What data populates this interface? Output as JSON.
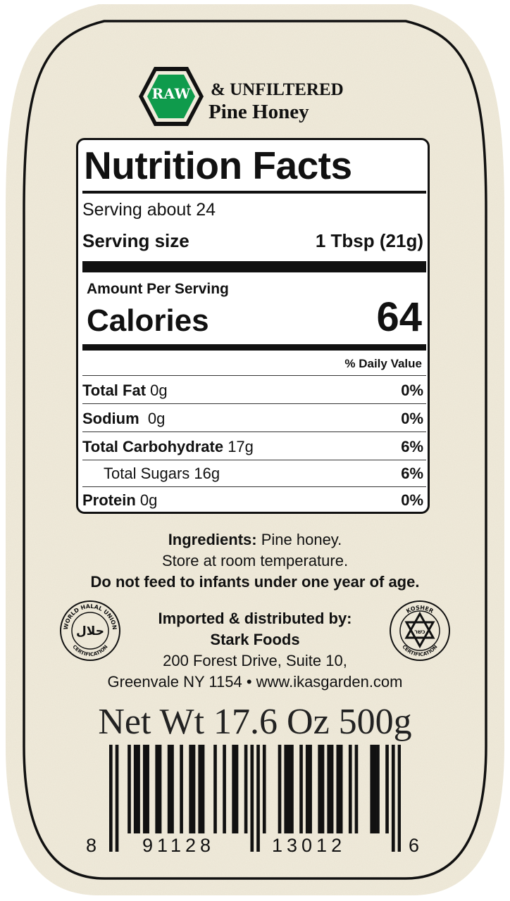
{
  "brand": {
    "badge": "RAW",
    "line1": "& UNFILTERED",
    "line2": "Pine Honey",
    "badge_color": "#0f9b4c"
  },
  "nutrition": {
    "title": "Nutrition Facts",
    "servings": "Serving about 24",
    "serving_size_label": "Serving size",
    "serving_size_value": "1 Tbsp (21g)",
    "amount_per_serving": "Amount Per Serving",
    "calories_label": "Calories",
    "calories_value": "64",
    "dv_header": "% Daily Value",
    "rows": [
      {
        "name": "Total Fat",
        "amount": "0g",
        "dv": "0%",
        "indent": false
      },
      {
        "name": "Sodium",
        "amount": "0g",
        "dv": "0%",
        "indent": false
      },
      {
        "name": "Total Carbohydrate",
        "amount": "17g",
        "dv": "6%",
        "indent": false
      },
      {
        "name": "",
        "amount": "Total Sugars 16g",
        "dv": "6%",
        "indent": true
      },
      {
        "name": "Protein",
        "amount": "0g",
        "dv": "0%",
        "indent": false
      }
    ]
  },
  "ingredients": {
    "label": "Ingredients:",
    "text": "Pine honey.",
    "storage": "Store at room temperature.",
    "warning": "Do not feed to infants under one year of age."
  },
  "distributor": {
    "heading": "Imported & distributed by:",
    "name": "Stark Foods",
    "address1": "200 Forest Drive, Suite 10,",
    "address2": "Greenvale NY 1154 • www.ikasgarden.com"
  },
  "seals": {
    "halal_top": "WORLD HALAL UNION",
    "halal_bottom": "CERTIFICATION",
    "halal_center": "حلال",
    "kosher_top": "KOSHER",
    "kosher_bottom": "CERTIFICATION",
    "kosher_center": "כשר"
  },
  "net_weight": "Net Wt 17.6 Oz 500g",
  "barcode": {
    "first": "8",
    "left_group": "91128",
    "right_group": "13012",
    "last": "6"
  },
  "colors": {
    "paper": "#f1ecdc",
    "ink": "#111111"
  }
}
